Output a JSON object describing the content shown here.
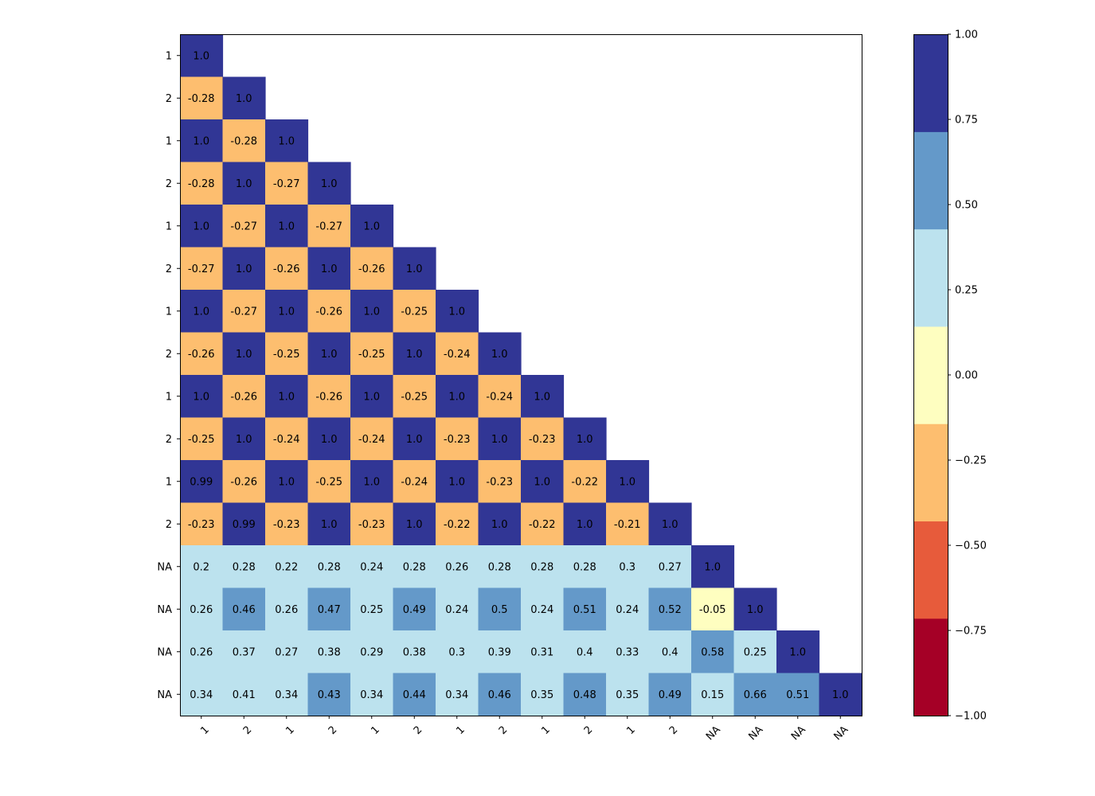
{
  "chart_data": {
    "type": "heatmap",
    "title": "",
    "xlabel": "",
    "ylabel": "",
    "lower_triangle": true,
    "x_tick_labels": [
      "1",
      "2",
      "1",
      "2",
      "1",
      "2",
      "1",
      "2",
      "1",
      "2",
      "1",
      "2",
      "NA",
      "NA",
      "NA",
      "NA"
    ],
    "y_tick_labels": [
      "1",
      "2",
      "1",
      "2",
      "1",
      "2",
      "1",
      "2",
      "1",
      "2",
      "1",
      "2",
      "NA",
      "NA",
      "NA",
      "NA"
    ],
    "matrix": [
      [
        "1.0"
      ],
      [
        "-0.28",
        "1.0"
      ],
      [
        "1.0",
        "-0.28",
        "1.0"
      ],
      [
        "-0.28",
        "1.0",
        "-0.27",
        "1.0"
      ],
      [
        "1.0",
        "-0.27",
        "1.0",
        "-0.27",
        "1.0"
      ],
      [
        "-0.27",
        "1.0",
        "-0.26",
        "1.0",
        "-0.26",
        "1.0"
      ],
      [
        "1.0",
        "-0.27",
        "1.0",
        "-0.26",
        "1.0",
        "-0.25",
        "1.0"
      ],
      [
        "-0.26",
        "1.0",
        "-0.25",
        "1.0",
        "-0.25",
        "1.0",
        "-0.24",
        "1.0"
      ],
      [
        "1.0",
        "-0.26",
        "1.0",
        "-0.26",
        "1.0",
        "-0.25",
        "1.0",
        "-0.24",
        "1.0"
      ],
      [
        "-0.25",
        "1.0",
        "-0.24",
        "1.0",
        "-0.24",
        "1.0",
        "-0.23",
        "1.0",
        "-0.23",
        "1.0"
      ],
      [
        "0.99",
        "-0.26",
        "1.0",
        "-0.25",
        "1.0",
        "-0.24",
        "1.0",
        "-0.23",
        "1.0",
        "-0.22",
        "1.0"
      ],
      [
        "-0.23",
        "0.99",
        "-0.23",
        "1.0",
        "-0.23",
        "1.0",
        "-0.22",
        "1.0",
        "-0.22",
        "1.0",
        "-0.21",
        "1.0"
      ],
      [
        "0.2",
        "0.28",
        "0.22",
        "0.28",
        "0.24",
        "0.28",
        "0.26",
        "0.28",
        "0.28",
        "0.28",
        "0.3",
        "0.27",
        "1.0"
      ],
      [
        "0.26",
        "0.46",
        "0.26",
        "0.47",
        "0.25",
        "0.49",
        "0.24",
        "0.5",
        "0.24",
        "0.51",
        "0.24",
        "0.52",
        "-0.05",
        "1.0"
      ],
      [
        "0.26",
        "0.37",
        "0.27",
        "0.38",
        "0.29",
        "0.38",
        "0.3",
        "0.39",
        "0.31",
        "0.4",
        "0.33",
        "0.4",
        "0.58",
        "0.25",
        "1.0"
      ],
      [
        "0.34",
        "0.41",
        "0.34",
        "0.43",
        "0.34",
        "0.44",
        "0.34",
        "0.46",
        "0.35",
        "0.48",
        "0.35",
        "0.49",
        "0.15",
        "0.66",
        "0.51",
        "1.0"
      ]
    ],
    "colorbar": {
      "range": [
        -1.0,
        1.0
      ],
      "tick_labels": [
        "1.00",
        "0.75",
        "0.50",
        "0.25",
        "0.00",
        "−0.25",
        "−0.50",
        "−0.75",
        "−1.00"
      ],
      "tick_values": [
        1.0,
        0.75,
        0.5,
        0.25,
        0.0,
        -0.25,
        -0.5,
        -0.75,
        -1.0
      ],
      "bins": 7,
      "colors": [
        "#a50026",
        "#e75b3b",
        "#fdbe6f",
        "#fefec0",
        "#bce2ee",
        "#6499c9",
        "#313695"
      ]
    }
  }
}
